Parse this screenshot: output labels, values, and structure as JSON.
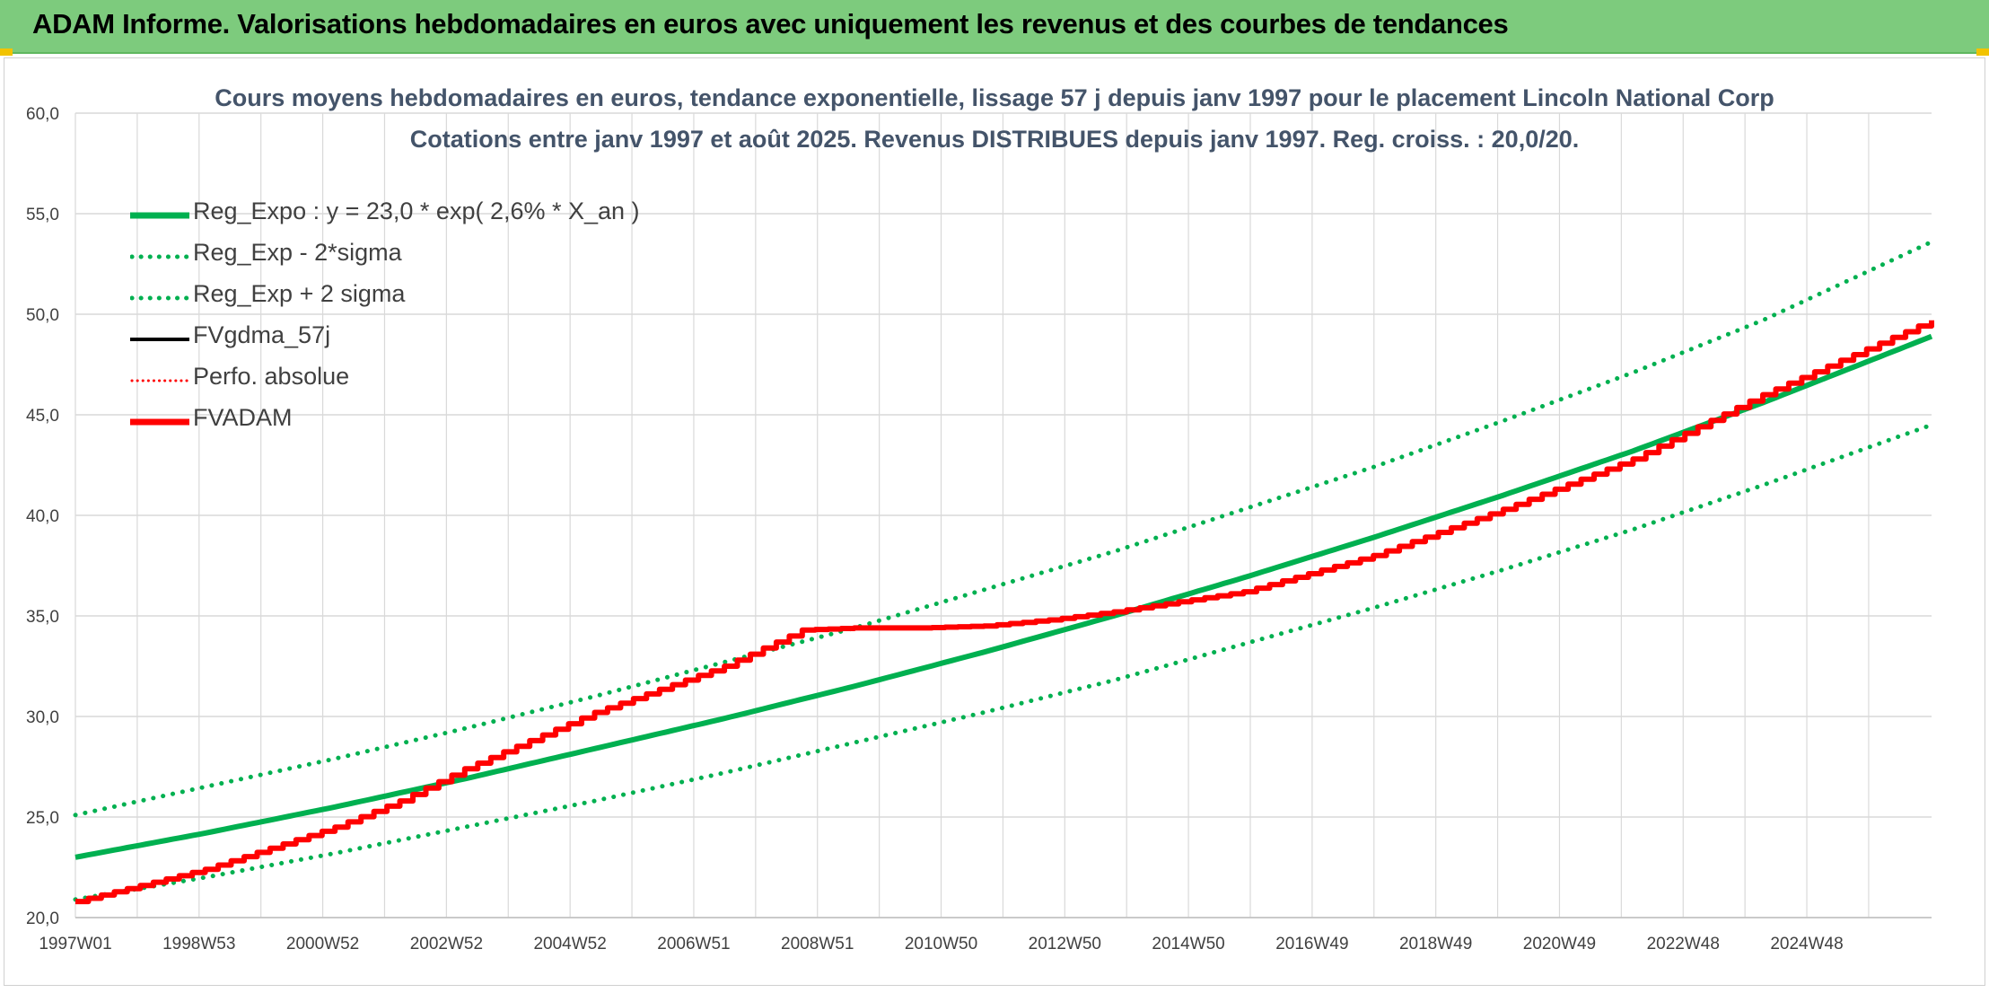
{
  "banner": {
    "title": "ADAM Informe. Valorisations hebdomadaires en euros avec uniquement les revenus et des courbes de tendances"
  },
  "colors": {
    "banner_bg": "#7dcb7d",
    "green": "#00b050",
    "red": "#ff0000",
    "black": "#000000",
    "grid": "#d9d9d9",
    "title_text": "#44546a"
  },
  "chart_data": {
    "type": "line",
    "title": "Cours moyens hebdomadaires en euros, tendance exponentielle, lissage 57 j depuis janv 1997 pour le placement Lincoln National Corp",
    "subtitle": "Cotations entre janv 1997 et août 2025. Revenus DISTRIBUES depuis janv 1997. Reg. croiss. : 20,0/20.",
    "xlabel": "",
    "ylabel": "",
    "ylim": [
      20,
      60
    ],
    "yticks": [
      "60,0",
      "55,0",
      "50,0",
      "45,0",
      "40,0",
      "35,0",
      "30,0",
      "25,0",
      "20,0"
    ],
    "xlim": [
      1997.0,
      2025.6
    ],
    "xtick_labels": [
      "1997W01",
      "1998W53",
      "2000W52",
      "2002W52",
      "2004W52",
      "2006W51",
      "2008W51",
      "2010W50",
      "2012W50",
      "2014W50",
      "2016W49",
      "2018W49",
      "2020W49",
      "2022W48",
      "2024W48"
    ],
    "grid": true,
    "legend_position": "top-left",
    "series": [
      {
        "name": "Reg_Expo : y = 23,0 * exp( 2,6% *  X_an )",
        "color": "#00b050",
        "style": "solid",
        "x": [
          1997,
          1999,
          2001,
          2003,
          2005,
          2007,
          2009,
          2011,
          2013,
          2015,
          2017,
          2019,
          2021,
          2023,
          2025.6
        ],
        "y": [
          23.0,
          24.2,
          25.5,
          26.9,
          28.4,
          29.9,
          31.5,
          33.2,
          35.0,
          36.9,
          38.9,
          41.0,
          43.2,
          45.6,
          48.9
        ]
      },
      {
        "name": "Reg_Exp - 2*sigma",
        "color": "#00b050",
        "style": "dotted",
        "x": [
          1997,
          1999,
          2001,
          2003,
          2005,
          2007,
          2009,
          2011,
          2013,
          2015,
          2017,
          2019,
          2021,
          2023,
          2025.6
        ],
        "y": [
          20.9,
          22.0,
          23.2,
          24.5,
          25.8,
          27.2,
          28.7,
          30.2,
          31.8,
          33.6,
          35.4,
          37.3,
          39.3,
          41.5,
          44.5
        ]
      },
      {
        "name": "Reg_Exp + 2 sigma",
        "color": "#00b050",
        "style": "dotted",
        "x": [
          1997,
          1999,
          2001,
          2003,
          2005,
          2007,
          2009,
          2011,
          2013,
          2015,
          2017,
          2019,
          2021,
          2023,
          2025.6
        ],
        "y": [
          25.1,
          26.5,
          27.9,
          29.4,
          31.0,
          32.7,
          34.4,
          36.3,
          38.2,
          40.3,
          42.4,
          44.7,
          47.1,
          49.7,
          53.6
        ]
      },
      {
        "name": "FVgdma_57j",
        "color": "#000000",
        "style": "solid",
        "x": [],
        "y": []
      },
      {
        "name": "Perfo. absolue",
        "color": "#ff0000",
        "style": "dotted",
        "x": [],
        "y": []
      },
      {
        "name": "FVADAM",
        "color": "#ff0000",
        "style": "solid-steps",
        "x": [
          1997,
          1999,
          2001,
          2002,
          2003,
          2005,
          2007,
          2008.2,
          2009,
          2010,
          2011,
          2012,
          2013,
          2015,
          2017,
          2019,
          2021,
          2022,
          2023,
          2025.6
        ],
        "y": [
          20.8,
          22.4,
          24.5,
          25.8,
          27.4,
          30.2,
          32.5,
          34.3,
          34.4,
          34.4,
          34.5,
          34.8,
          35.2,
          36.2,
          38.0,
          40.3,
          42.8,
          44.4,
          46.0,
          49.7
        ]
      }
    ]
  }
}
